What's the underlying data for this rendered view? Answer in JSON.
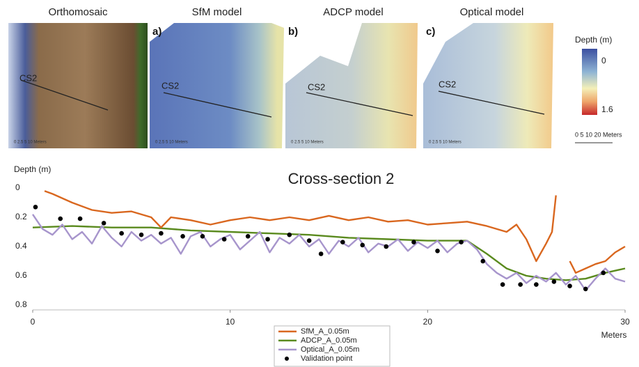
{
  "panels": [
    {
      "title": "Orthomosaic",
      "cs_label": "CS2",
      "scale_text": "0 2.5 5 10 Meters"
    },
    {
      "title": "SfM model",
      "panel_label": "a)",
      "cs_label": "CS2",
      "scale_text": "0 2.5 5 10 Meters"
    },
    {
      "title": "ADCP model",
      "panel_label": "b)",
      "cs_label": "CS2",
      "scale_text": "0 2.5 5 10 Meters"
    },
    {
      "title": "Optical model",
      "panel_label": "c)",
      "cs_label": "CS2",
      "scale_text": "0 2.5 5 10 Meters"
    }
  ],
  "colorbar": {
    "title": "Depth (m)",
    "top_label": "0",
    "bottom_label": "1.6",
    "scale_text": "0 5 10 20 Meters"
  },
  "chart_data": {
    "type": "line",
    "title": "Cross-section 2",
    "y_label": "Depth (m)",
    "x_label": "Meters",
    "xlim": [
      0,
      30
    ],
    "xticks": [
      0,
      10,
      20,
      30
    ],
    "ylim": [
      0,
      0.8
    ],
    "y_inverted": true,
    "yticks": [
      0,
      0.2,
      0.4,
      0.6,
      0.8
    ],
    "legend": "bottom",
    "series": [
      {
        "name": "SfM_A_0.05m",
        "color": "#d9671f",
        "marker": false,
        "x": [
          0.6,
          1,
          2,
          3,
          4,
          5,
          6,
          6.5,
          7,
          8,
          9,
          10,
          11,
          12,
          13,
          14,
          15,
          16,
          17,
          18,
          19,
          20,
          21,
          22,
          23,
          24,
          24.5,
          25,
          25.5,
          26,
          26.3,
          26.5,
          27,
          27.2,
          27.5,
          28,
          28.5,
          29,
          29.5,
          30
        ],
        "values": [
          0.02,
          0.04,
          0.1,
          0.15,
          0.17,
          0.16,
          0.2,
          0.27,
          0.2,
          0.22,
          0.25,
          0.22,
          0.2,
          0.22,
          0.2,
          0.22,
          0.19,
          0.22,
          0.2,
          0.23,
          0.22,
          0.25,
          0.24,
          0.23,
          0.26,
          0.3,
          0.25,
          0.35,
          0.5,
          0.38,
          0.3,
          0.05,
          null,
          0.5,
          0.58,
          0.55,
          0.52,
          0.5,
          0.44,
          0.4
        ]
      },
      {
        "name": "ADCP_A_0.05m",
        "color": "#5a8a1e",
        "marker": false,
        "x": [
          0,
          2,
          4,
          6,
          8,
          10,
          12,
          14,
          16,
          18,
          20,
          22,
          23,
          24,
          25,
          26,
          27,
          28,
          29,
          30
        ],
        "values": [
          0.27,
          0.26,
          0.27,
          0.27,
          0.29,
          0.3,
          0.31,
          0.32,
          0.34,
          0.35,
          0.36,
          0.36,
          0.45,
          0.55,
          0.6,
          0.62,
          0.63,
          0.62,
          0.58,
          0.55
        ]
      },
      {
        "name": "Optical_A_0.05m",
        "color": "#a795cc",
        "marker": false,
        "x": [
          0,
          0.5,
          1,
          1.5,
          2,
          2.5,
          3,
          3.5,
          4,
          4.5,
          5,
          5.5,
          6,
          6.5,
          7,
          7.5,
          8,
          8.5,
          9,
          9.5,
          10,
          10.5,
          11,
          11.5,
          12,
          12.5,
          13,
          13.5,
          14,
          14.5,
          15,
          15.5,
          16,
          16.5,
          17,
          17.5,
          18,
          18.5,
          19,
          19.5,
          20,
          20.5,
          21,
          21.5,
          22,
          22.5,
          23,
          23.5,
          24,
          24.5,
          25,
          25.5,
          26,
          26.5,
          27,
          27.5,
          28,
          28.5,
          29,
          29.5,
          30
        ],
        "values": [
          0.18,
          0.28,
          0.32,
          0.25,
          0.35,
          0.3,
          0.38,
          0.26,
          0.34,
          0.4,
          0.3,
          0.36,
          0.32,
          0.38,
          0.34,
          0.45,
          0.33,
          0.3,
          0.4,
          0.35,
          0.32,
          0.42,
          0.36,
          0.3,
          0.44,
          0.34,
          0.38,
          0.32,
          0.4,
          0.35,
          0.45,
          0.36,
          0.4,
          0.34,
          0.44,
          0.38,
          0.4,
          0.35,
          0.43,
          0.37,
          0.41,
          0.36,
          0.44,
          0.38,
          0.36,
          0.42,
          0.52,
          0.58,
          0.62,
          0.58,
          0.65,
          0.6,
          0.64,
          0.58,
          0.66,
          0.6,
          0.7,
          0.62,
          0.55,
          0.62,
          0.64
        ]
      },
      {
        "name": "Validation point",
        "color": "#000000",
        "marker": true,
        "x": [
          0.14,
          1.4,
          2.4,
          3.6,
          4.5,
          5.5,
          6.5,
          7.6,
          8.6,
          9.7,
          10.9,
          11.9,
          13.0,
          14.0,
          14.6,
          15.7,
          16.7,
          17.9,
          19.3,
          20.5,
          21.7,
          22.8,
          23.8,
          24.7,
          25.5,
          26.4,
          27.2,
          28.0,
          28.9
        ],
        "values": [
          0.13,
          0.21,
          0.21,
          0.24,
          0.31,
          0.32,
          0.31,
          0.33,
          0.33,
          0.35,
          0.33,
          0.35,
          0.32,
          0.36,
          0.45,
          0.37,
          0.39,
          0.4,
          0.37,
          0.43,
          0.37,
          0.5,
          0.66,
          0.66,
          0.66,
          0.64,
          0.67,
          0.69,
          0.58
        ]
      }
    ]
  }
}
